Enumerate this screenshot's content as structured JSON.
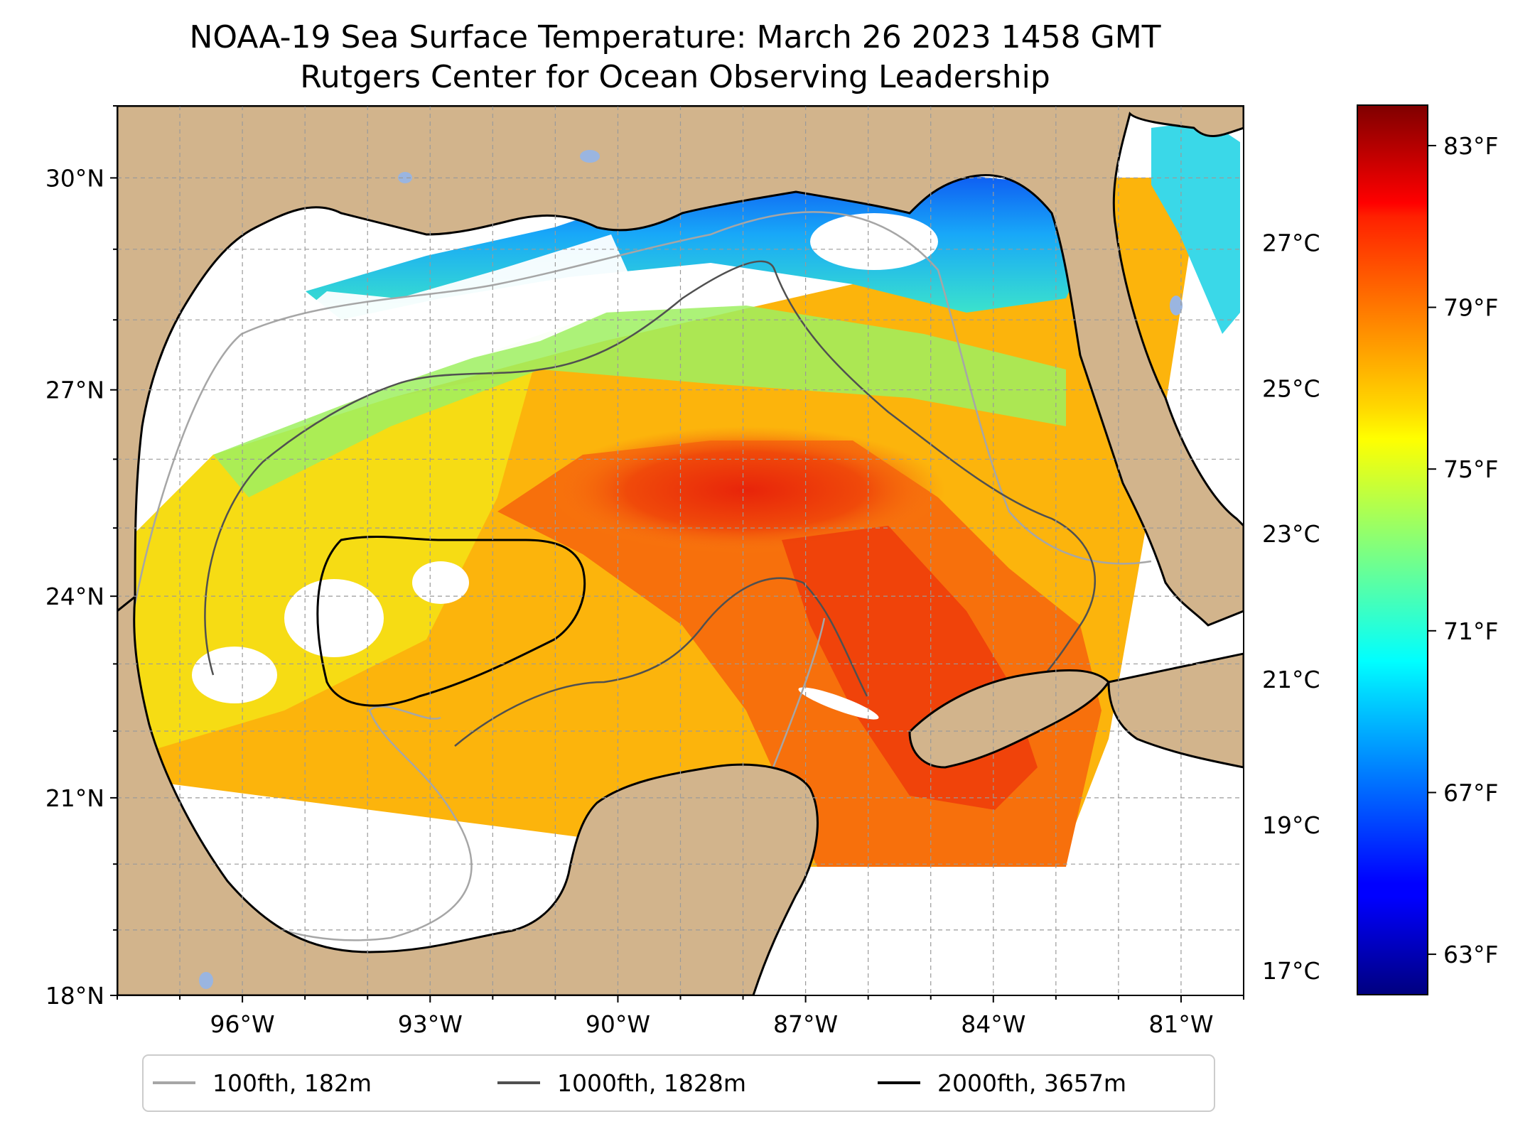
{
  "title": {
    "line1": "NOAA-19 Sea Surface Temperature: March 26 2023 1458 GMT",
    "line2": "Rutgers Center for Ocean Observing Leadership"
  },
  "map": {
    "lon_range": [
      -98,
      -80
    ],
    "lat_range": [
      18,
      31
    ],
    "lat_ticks": [
      {
        "value": 18,
        "label": "18°N"
      },
      {
        "value": 21,
        "label": "21°N"
      },
      {
        "value": 24,
        "label": "24°N"
      },
      {
        "value": 27,
        "label": "27°N"
      },
      {
        "value": 30,
        "label": "30°N"
      }
    ],
    "lon_ticks": [
      {
        "value": -96,
        "label": "96°W"
      },
      {
        "value": -93,
        "label": "93°W"
      },
      {
        "value": -90,
        "label": "90°W"
      },
      {
        "value": -87,
        "label": "87°W"
      },
      {
        "value": -84,
        "label": "84°W"
      },
      {
        "value": -81,
        "label": "81°W"
      }
    ],
    "grid": true,
    "colors": {
      "land": "#d2b48c",
      "water": "#ffffff",
      "lakes": "#9ab5e0",
      "contour_100": "#a6a6a6",
      "contour_1000": "#505050",
      "contour_2000": "#000000"
    }
  },
  "colorbar": {
    "colormap": "jet",
    "celsius_ticks": [
      {
        "value": 17,
        "label": "17°C"
      },
      {
        "value": 19,
        "label": "19°C"
      },
      {
        "value": 21,
        "label": "21°C"
      },
      {
        "value": 23,
        "label": "23°C"
      },
      {
        "value": 25,
        "label": "25°C"
      },
      {
        "value": 27,
        "label": "27°C"
      }
    ],
    "fahrenheit_ticks": [
      {
        "value": 63,
        "label": "63°F"
      },
      {
        "value": 67,
        "label": "67°F"
      },
      {
        "value": 71,
        "label": "71°F"
      },
      {
        "value": 75,
        "label": "75°F"
      },
      {
        "value": 79,
        "label": "79°F"
      },
      {
        "value": 83,
        "label": "83°F"
      }
    ],
    "f_range": [
      62,
      84
    ]
  },
  "legend": {
    "items": [
      {
        "label": "100fth, 182m",
        "color": "#a6a6a6"
      },
      {
        "label": "1000fth, 1828m",
        "color": "#505050"
      },
      {
        "label": "2000fth, 3657m",
        "color": "#000000"
      }
    ]
  }
}
